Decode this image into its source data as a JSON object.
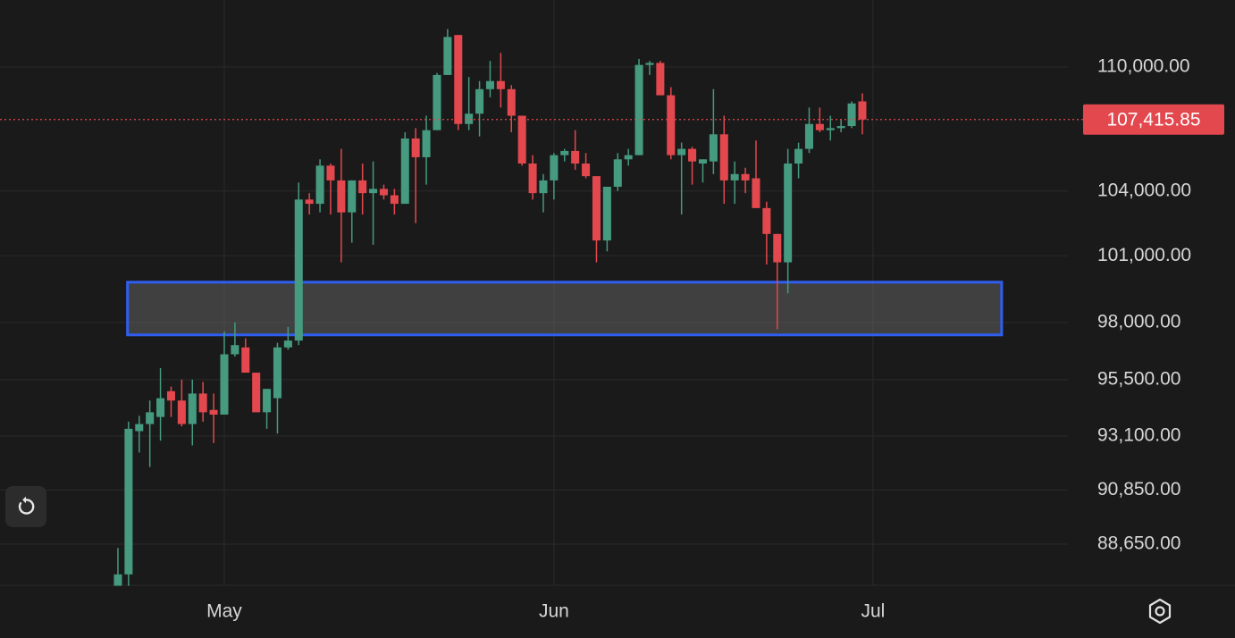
{
  "chart_data": {
    "type": "candlestick",
    "log_scale": true,
    "grid": true,
    "up_color": "#459a7f",
    "down_color": "#e2484e",
    "open": [
      87000,
      87450,
      93300,
      93600,
      93900,
      95000,
      94600,
      93600,
      94900,
      94200,
      94000,
      96600,
      96900,
      95800,
      94100,
      94700,
      96900,
      97200,
      103600,
      103400,
      105200,
      104500,
      103000,
      104500,
      103900,
      104100,
      103800,
      103400,
      106500,
      105600,
      106900,
      109600,
      111600,
      107200,
      107700,
      108900,
      109300,
      108900,
      107600,
      105300,
      103900,
      104500,
      105700,
      105900,
      105300,
      104700,
      101700,
      104200,
      105500,
      105700,
      110100,
      110200,
      108600,
      105700,
      106000,
      105300,
      105400,
      106700,
      104500,
      104800,
      104600,
      103200,
      102000,
      100700,
      105300,
      106000,
      107200,
      106900,
      107000,
      107100,
      108300
    ],
    "high": [
      88500,
      93700,
      93950,
      94600,
      96000,
      95200,
      95500,
      95500,
      95400,
      94900,
      97600,
      98000,
      97300,
      95800,
      95100,
      97100,
      97800,
      104400,
      103900,
      105500,
      105300,
      106000,
      104500,
      105300,
      105400,
      104300,
      104100,
      106800,
      107000,
      107600,
      109700,
      111900,
      111600,
      109500,
      109300,
      110300,
      110700,
      109100,
      107600,
      105700,
      104800,
      105800,
      106000,
      106900,
      105800,
      104700,
      104200,
      105800,
      106000,
      110400,
      110300,
      110300,
      109000,
      106300,
      106100,
      105500,
      108900,
      107600,
      105400,
      105100,
      106400,
      103500,
      102000,
      106000,
      106300,
      108000,
      108000,
      107600,
      107400,
      108300,
      108700
    ],
    "low": [
      87000,
      87000,
      92400,
      91800,
      92900,
      93900,
      93500,
      92700,
      93700,
      92800,
      94000,
      96500,
      95800,
      94100,
      93400,
      93200,
      96800,
      97000,
      102900,
      103000,
      102900,
      100700,
      101600,
      102900,
      101500,
      103600,
      102900,
      103400,
      102500,
      104300,
      106900,
      109600,
      106900,
      106900,
      106600,
      108500,
      108000,
      106800,
      105200,
      103600,
      103000,
      103600,
      105400,
      105000,
      104600,
      100700,
      101200,
      104000,
      105200,
      105700,
      109600,
      108600,
      105500,
      102900,
      104300,
      104400,
      104800,
      103400,
      103400,
      103900,
      103200,
      100600,
      97700,
      99300,
      104600,
      105800,
      106800,
      106400,
      106800,
      107000,
      106700
    ],
    "close": [
      87450,
      93400,
      93600,
      94100,
      94700,
      94600,
      93600,
      94900,
      94100,
      94000,
      96600,
      97000,
      95800,
      94100,
      95100,
      96900,
      97200,
      103600,
      103400,
      105200,
      104500,
      103000,
      104500,
      103900,
      104100,
      103800,
      103400,
      106500,
      105600,
      106900,
      109600,
      111500,
      107200,
      107700,
      108900,
      109300,
      108900,
      107600,
      105300,
      103900,
      104500,
      105700,
      105900,
      105300,
      104700,
      101700,
      104200,
      105500,
      105700,
      110100,
      110200,
      108600,
      105700,
      106000,
      105400,
      105500,
      106700,
      104500,
      104800,
      104500,
      103200,
      102000,
      100700,
      105300,
      106000,
      107200,
      106900,
      107000,
      107100,
      108200,
      107415.85
    ],
    "xlim": [
      -11.09,
      89.33
    ],
    "xticks": [
      {
        "value": 10,
        "label": "May"
      },
      {
        "value": 41,
        "label": "Jun"
      },
      {
        "value": 71,
        "label": "Jul"
      }
    ],
    "ylim": [
      87020,
      113380
    ],
    "yticks": [
      {
        "value": 88650,
        "label": "88,650.00"
      },
      {
        "value": 90850,
        "label": "90,850.00"
      },
      {
        "value": 93100,
        "label": "93,100.00"
      },
      {
        "value": 95500,
        "label": "95,500.00"
      },
      {
        "value": 98000,
        "label": "98,000.00"
      },
      {
        "value": 101000,
        "label": "101,000.00"
      },
      {
        "value": 104000,
        "label": "104,000.00"
      },
      {
        "value": 110000,
        "label": "110,000.00"
      }
    ],
    "last_price": {
      "value": 107415.85,
      "label": "107,415.85",
      "color": "#e2484e"
    },
    "zone": [
      97450,
      99800
    ],
    "zone_color": "#2f5ef0"
  }
}
